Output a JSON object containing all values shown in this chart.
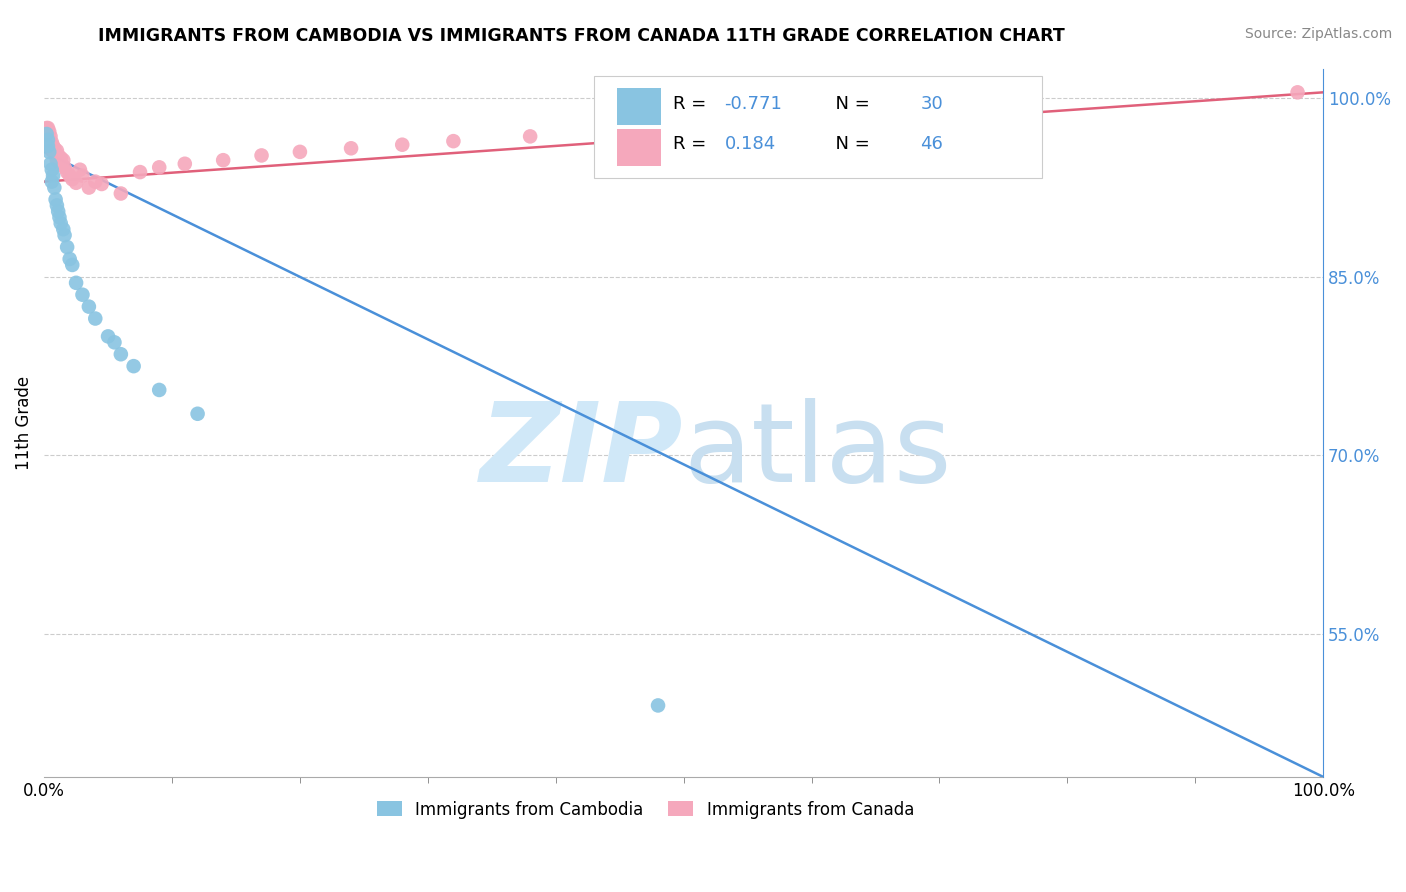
{
  "title": "IMMIGRANTS FROM CAMBODIA VS IMMIGRANTS FROM CANADA 11TH GRADE CORRELATION CHART",
  "source_text": "Source: ZipAtlas.com",
  "ylabel": "11th Grade",
  "legend_label_1": "Immigrants from Cambodia",
  "legend_label_2": "Immigrants from Canada",
  "R1": -0.771,
  "N1": 30,
  "R2": 0.184,
  "N2": 46,
  "color1": "#89c4e1",
  "color2": "#f5a8bc",
  "line_color1": "#4a90d9",
  "line_color2": "#e0607a",
  "watermark_zip_color": "#d0e8f8",
  "watermark_atlas_color": "#c8dff0",
  "xlim": [
    0.0,
    1.0
  ],
  "ylim": [
    0.43,
    1.025
  ],
  "right_yticks": [
    0.55,
    0.7,
    0.85,
    1.0
  ],
  "right_yticklabels": [
    "55.0%",
    "70.0%",
    "85.0%",
    "100.0%"
  ],
  "xticklabels_pos": [
    0.0,
    1.0
  ],
  "xticklabels": [
    "0.0%",
    "100.0%"
  ],
  "blue_line_x": [
    0.0,
    1.0
  ],
  "blue_line_y": [
    0.955,
    0.43
  ],
  "pink_line_x": [
    0.0,
    1.0
  ],
  "pink_line_y": [
    0.93,
    1.005
  ],
  "scatter1_x": [
    0.002,
    0.003,
    0.003,
    0.004,
    0.005,
    0.006,
    0.006,
    0.007,
    0.008,
    0.009,
    0.01,
    0.011,
    0.012,
    0.013,
    0.015,
    0.016,
    0.018,
    0.02,
    0.022,
    0.025,
    0.03,
    0.035,
    0.04,
    0.05,
    0.055,
    0.06,
    0.07,
    0.09,
    0.12,
    0.48
  ],
  "scatter1_y": [
    0.97,
    0.96,
    0.965,
    0.955,
    0.945,
    0.94,
    0.93,
    0.935,
    0.925,
    0.915,
    0.91,
    0.905,
    0.9,
    0.895,
    0.89,
    0.885,
    0.875,
    0.865,
    0.86,
    0.845,
    0.835,
    0.825,
    0.815,
    0.8,
    0.795,
    0.785,
    0.775,
    0.755,
    0.735,
    0.49
  ],
  "scatter2_x": [
    0.002,
    0.002,
    0.003,
    0.003,
    0.004,
    0.004,
    0.005,
    0.005,
    0.006,
    0.006,
    0.007,
    0.008,
    0.008,
    0.009,
    0.01,
    0.01,
    0.011,
    0.012,
    0.013,
    0.014,
    0.015,
    0.016,
    0.018,
    0.02,
    0.022,
    0.025,
    0.028,
    0.03,
    0.035,
    0.04,
    0.045,
    0.06,
    0.075,
    0.09,
    0.11,
    0.14,
    0.17,
    0.2,
    0.24,
    0.28,
    0.32,
    0.38,
    0.44,
    0.5,
    0.6,
    0.98
  ],
  "scatter2_y": [
    0.975,
    0.97,
    0.975,
    0.968,
    0.972,
    0.965,
    0.968,
    0.96,
    0.963,
    0.956,
    0.96,
    0.955,
    0.958,
    0.952,
    0.956,
    0.948,
    0.952,
    0.946,
    0.95,
    0.944,
    0.948,
    0.942,
    0.938,
    0.935,
    0.932,
    0.929,
    0.94,
    0.935,
    0.925,
    0.93,
    0.928,
    0.92,
    0.938,
    0.942,
    0.945,
    0.948,
    0.952,
    0.955,
    0.958,
    0.961,
    0.964,
    0.968,
    0.972,
    0.976,
    0.985,
    1.005
  ],
  "grid_yticks": [
    0.55,
    0.7,
    0.85,
    1.0
  ]
}
